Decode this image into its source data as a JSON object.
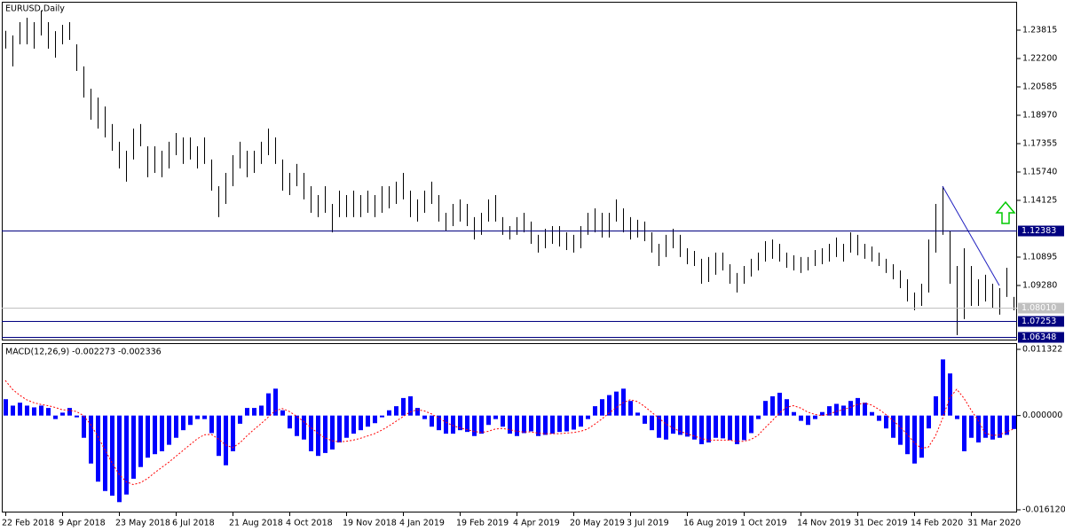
{
  "chart_data": [
    {
      "type": "hilo",
      "title": "EURUSD,Daily",
      "color": "#000000",
      "categories": [
        "22 Feb 2018",
        null,
        null,
        null,
        null,
        null,
        null,
        null,
        "9 Apr 2018",
        null,
        null,
        null,
        null,
        null,
        null,
        null,
        "23 May 2018",
        null,
        null,
        null,
        null,
        null,
        null,
        null,
        "6 Jul 2018",
        null,
        null,
        null,
        null,
        null,
        null,
        null,
        "21 Aug 2018",
        null,
        null,
        null,
        null,
        null,
        null,
        null,
        "4 Oct 2018",
        null,
        null,
        null,
        null,
        null,
        null,
        null,
        "19 Nov 2018",
        null,
        null,
        null,
        null,
        null,
        null,
        null,
        "4 Jan 2019",
        null,
        null,
        null,
        null,
        null,
        null,
        null,
        "19 Feb 2019",
        null,
        null,
        null,
        null,
        null,
        null,
        null,
        "4 Apr 2019",
        null,
        null,
        null,
        null,
        null,
        null,
        null,
        "20 May 2019",
        null,
        null,
        null,
        null,
        null,
        null,
        null,
        "3 Jul 2019",
        null,
        null,
        null,
        null,
        null,
        null,
        null,
        "16 Aug 2019",
        null,
        null,
        null,
        null,
        null,
        null,
        null,
        "1 Oct 2019",
        null,
        null,
        null,
        null,
        null,
        null,
        null,
        "14 Nov 2019",
        null,
        null,
        null,
        null,
        null,
        null,
        null,
        "31 Dec 2019",
        null,
        null,
        null,
        null,
        null,
        null,
        null,
        "14 Feb 2020",
        null,
        null,
        null,
        null,
        null,
        null,
        null,
        "31 Mar 2020",
        null,
        null,
        null,
        null,
        null,
        null
      ],
      "high": [
        1.2378,
        1.2351,
        1.2427,
        1.2452,
        1.2427,
        1.2493,
        1.2427,
        1.2376,
        1.2412,
        1.2427,
        1.2301,
        1.2175,
        1.2048,
        1.1998,
        1.1947,
        1.1847,
        1.1746,
        1.1695,
        1.1821,
        1.1847,
        1.172,
        1.172,
        1.1695,
        1.1746,
        1.1796,
        1.1771,
        1.1771,
        1.172,
        1.1771,
        1.1645,
        1.1493,
        1.1569,
        1.167,
        1.1746,
        1.1695,
        1.1695,
        1.1746,
        1.1821,
        1.1771,
        1.1645,
        1.1569,
        1.162,
        1.1569,
        1.1493,
        1.1443,
        1.1493,
        1.1392,
        1.1468,
        1.1443,
        1.1468,
        1.1443,
        1.1468,
        1.1443,
        1.1493,
        1.1493,
        1.1519,
        1.1569,
        1.1468,
        1.1418,
        1.1468,
        1.1519,
        1.1443,
        1.1342,
        1.1392,
        1.1418,
        1.1392,
        1.1317,
        1.1342,
        1.1418,
        1.1443,
        1.1317,
        1.1266,
        1.1317,
        1.1342,
        1.1292,
        1.1216,
        1.1251,
        1.1266,
        1.1266,
        1.1231,
        1.1216,
        1.1266,
        1.1342,
        1.1367,
        1.1342,
        1.1342,
        1.1418,
        1.1367,
        1.1317,
        1.1302,
        1.1292,
        1.1231,
        1.1165,
        1.1216,
        1.1251,
        1.1216,
        1.114,
        1.1125,
        1.108,
        1.109,
        1.1115,
        1.1115,
        1.1049,
        1.0999,
        1.1039,
        1.108,
        1.1115,
        1.118,
        1.119,
        1.1165,
        1.1115,
        1.11,
        1.109,
        1.109,
        1.113,
        1.114,
        1.1165,
        1.1201,
        1.1165,
        1.1231,
        1.1216,
        1.1165,
        1.115,
        1.1115,
        1.108,
        1.1049,
        1.1014,
        1.0963,
        1.0888,
        1.0938,
        1.119,
        1.1392,
        1.1493,
        1.1241,
        1.1039,
        1.114,
        1.1039,
        1.0963,
        1.0989,
        1.0938,
        1.0913,
        1.1029,
        1.0863
      ],
      "low": [
        1.2277,
        1.2175,
        1.2301,
        1.2301,
        1.2276,
        1.2351,
        1.2276,
        1.2225,
        1.2301,
        1.2326,
        1.2149,
        1.1998,
        1.1872,
        1.1821,
        1.1771,
        1.1695,
        1.1594,
        1.1519,
        1.1645,
        1.172,
        1.1544,
        1.1569,
        1.1544,
        1.1594,
        1.167,
        1.162,
        1.1645,
        1.1594,
        1.162,
        1.1468,
        1.1317,
        1.1392,
        1.1493,
        1.1594,
        1.1544,
        1.1569,
        1.162,
        1.167,
        1.162,
        1.1468,
        1.1443,
        1.1493,
        1.1418,
        1.1342,
        1.1317,
        1.1342,
        1.1231,
        1.1317,
        1.1317,
        1.1317,
        1.1317,
        1.1342,
        1.1317,
        1.1342,
        1.1367,
        1.1392,
        1.1418,
        1.1317,
        1.1292,
        1.1342,
        1.1392,
        1.1292,
        1.1241,
        1.1266,
        1.1292,
        1.1266,
        1.119,
        1.1216,
        1.1292,
        1.1292,
        1.1216,
        1.119,
        1.1216,
        1.1231,
        1.1165,
        1.1115,
        1.114,
        1.1165,
        1.115,
        1.113,
        1.1115,
        1.114,
        1.1216,
        1.1231,
        1.1201,
        1.1201,
        1.1292,
        1.1231,
        1.119,
        1.1201,
        1.118,
        1.1115,
        1.1039,
        1.109,
        1.114,
        1.109,
        1.1049,
        1.1039,
        1.0938,
        1.0948,
        1.0989,
        1.1014,
        1.0938,
        1.0888,
        1.0938,
        1.0979,
        1.1014,
        1.1064,
        1.108,
        1.1064,
        1.1029,
        1.1014,
        1.0999,
        1.1014,
        1.1039,
        1.1049,
        1.1064,
        1.109,
        1.1064,
        1.1115,
        1.11,
        1.108,
        1.1064,
        1.1039,
        1.0999,
        1.0963,
        1.0913,
        1.0837,
        1.0787,
        1.0812,
        1.0888,
        1.1115,
        1.1216,
        1.0938,
        1.0645,
        1.0737,
        1.0812,
        1.0812,
        1.0837,
        1.0797,
        1.0762,
        1.0863,
        1.0787
      ],
      "ylim": [
        1.062,
        1.2543
      ],
      "yticks": [
        1.23815,
        {
          "value": 1.222,
          "label": "1.22200"
        },
        1.20585,
        {
          "value": 1.1897,
          "label": "1.18970"
        },
        1.17355,
        {
          "value": 1.1574,
          "label": "1.15740"
        },
        1.14125,
        1.10895,
        {
          "value": 1.0928,
          "label": "1.09280"
        }
      ],
      "levels": [
        {
          "value": 1.12383,
          "color": "#000080"
        },
        {
          "value": 1.0801,
          "label": "1.08010",
          "color": "#c0c0c0"
        },
        {
          "value": 1.07253,
          "color": "#000080"
        },
        {
          "value": 1.06348,
          "color": "#000080"
        }
      ],
      "trendline": {
        "x": [
          132,
          140
        ],
        "y": [
          1.1493,
          1.0928
        ],
        "color": "#2020c0"
      }
    },
    {
      "type": "macd",
      "title": "MACD(12,26,9) -0.002273 -0.002336",
      "color": "#0000ff",
      "signal_color": "#ff0000",
      "values": [
        0.0028,
        0.0017,
        0.0022,
        0.0017,
        0.0014,
        0.0017,
        0.0013,
        -0.0006,
        0.0005,
        0.0013,
        -0.0003,
        -0.0038,
        -0.0082,
        -0.0113,
        -0.0129,
        -0.0137,
        -0.0148,
        -0.0135,
        -0.0108,
        -0.0088,
        -0.0072,
        -0.0066,
        -0.0061,
        -0.005,
        -0.0038,
        -0.0025,
        -0.0016,
        -0.0006,
        -0.0006,
        -0.003,
        -0.0069,
        -0.0085,
        -0.0061,
        -0.0014,
        0.0013,
        0.0013,
        0.0017,
        0.0038,
        0.0046,
        0.0009,
        -0.0022,
        -0.0035,
        -0.0041,
        -0.0061,
        -0.0069,
        -0.0064,
        -0.0058,
        -0.0046,
        -0.0038,
        -0.0031,
        -0.0025,
        -0.0019,
        -0.0013,
        -0.0003,
        0.0009,
        0.0016,
        0.003,
        0.0033,
        0.0013,
        -0.0006,
        -0.0019,
        -0.0025,
        -0.0031,
        -0.0031,
        -0.0025,
        -0.0028,
        -0.0035,
        -0.0031,
        -0.0016,
        -0.0006,
        -0.0019,
        -0.0031,
        -0.0035,
        -0.003,
        -0.0027,
        -0.0035,
        -0.0033,
        -0.0031,
        -0.0028,
        -0.0027,
        -0.0024,
        -0.0019,
        -0.0006,
        0.0016,
        0.0028,
        0.0035,
        0.0041,
        0.0046,
        0.0025,
        0.0005,
        -0.0014,
        -0.0025,
        -0.0038,
        -0.0041,
        -0.0031,
        -0.0033,
        -0.0036,
        -0.0041,
        -0.0049,
        -0.0046,
        -0.0038,
        -0.0039,
        -0.0042,
        -0.0049,
        -0.0042,
        -0.003,
        -0.0006,
        0.0025,
        0.0033,
        0.0039,
        0.0028,
        0.0006,
        -0.0009,
        -0.0016,
        -0.0006,
        0.0006,
        0.0016,
        0.002,
        0.0017,
        0.0025,
        0.003,
        0.0022,
        0.0006,
        -0.0009,
        -0.0022,
        -0.0038,
        -0.005,
        -0.0066,
        -0.0082,
        -0.0072,
        -0.0022,
        0.0033,
        0.0096,
        0.0072,
        -0.0006,
        -0.0061,
        -0.0038,
        -0.0046,
        -0.0038,
        -0.0041,
        -0.0038,
        -0.0033,
        -0.0023
      ],
      "signal": [
        0.006,
        0.0045,
        0.0035,
        0.0027,
        0.0022,
        0.0019,
        0.0017,
        0.0014,
        0.001,
        0.0009,
        0.0007,
        0.0,
        -0.0015,
        -0.0035,
        -0.0058,
        -0.008,
        -0.01,
        -0.0113,
        -0.0118,
        -0.0115,
        -0.0108,
        -0.0098,
        -0.0089,
        -0.008,
        -0.007,
        -0.006,
        -0.005,
        -0.004,
        -0.0033,
        -0.0032,
        -0.004,
        -0.005,
        -0.0055,
        -0.0047,
        -0.0035,
        -0.0024,
        -0.0014,
        -0.0003,
        0.0008,
        0.0012,
        0.0007,
        -0.0001,
        -0.001,
        -0.002,
        -0.003,
        -0.0038,
        -0.0043,
        -0.0045,
        -0.0044,
        -0.0042,
        -0.0039,
        -0.0035,
        -0.0031,
        -0.0025,
        -0.0018,
        -0.001,
        -0.0002,
        0.0006,
        0.001,
        0.0008,
        0.0003,
        -0.0004,
        -0.0011,
        -0.0017,
        -0.0021,
        -0.0024,
        -0.0027,
        -0.0029,
        -0.0027,
        -0.0023,
        -0.0022,
        -0.0024,
        -0.0027,
        -0.0028,
        -0.0028,
        -0.003,
        -0.0031,
        -0.0031,
        -0.0031,
        -0.003,
        -0.0029,
        -0.0027,
        -0.0023,
        -0.0015,
        -0.0006,
        0.0004,
        0.0013,
        0.0022,
        0.0027,
        0.0024,
        0.0016,
        0.0006,
        -0.0004,
        -0.0014,
        -0.0021,
        -0.0027,
        -0.0031,
        -0.0035,
        -0.0039,
        -0.0042,
        -0.0042,
        -0.0042,
        -0.0042,
        -0.0044,
        -0.0044,
        -0.0041,
        -0.0034,
        -0.0021,
        -0.0009,
        0.0004,
        0.0014,
        0.0017,
        0.0013,
        0.0006,
        0.0002,
        0.0,
        0.0002,
        0.0007,
        0.001,
        0.0014,
        0.0019,
        0.0021,
        0.0018,
        0.0011,
        0.0002,
        -0.0008,
        -0.0019,
        -0.0032,
        -0.0046,
        -0.0056,
        -0.0054,
        -0.0035,
        -0.0005,
        0.003,
        0.0045,
        0.003,
        0.001,
        -0.0008,
        -0.003,
        -0.0034,
        -0.0033,
        -0.0028,
        -0.0023
      ],
      "ylim": [
        -0.01612,
        0.011322
      ],
      "yticks": [
        0.011322,
        {
          "value": 0,
          "label": "0.000000"
        },
        {
          "value": -0.01612,
          "label": "-0.016120"
        }
      ]
    }
  ]
}
